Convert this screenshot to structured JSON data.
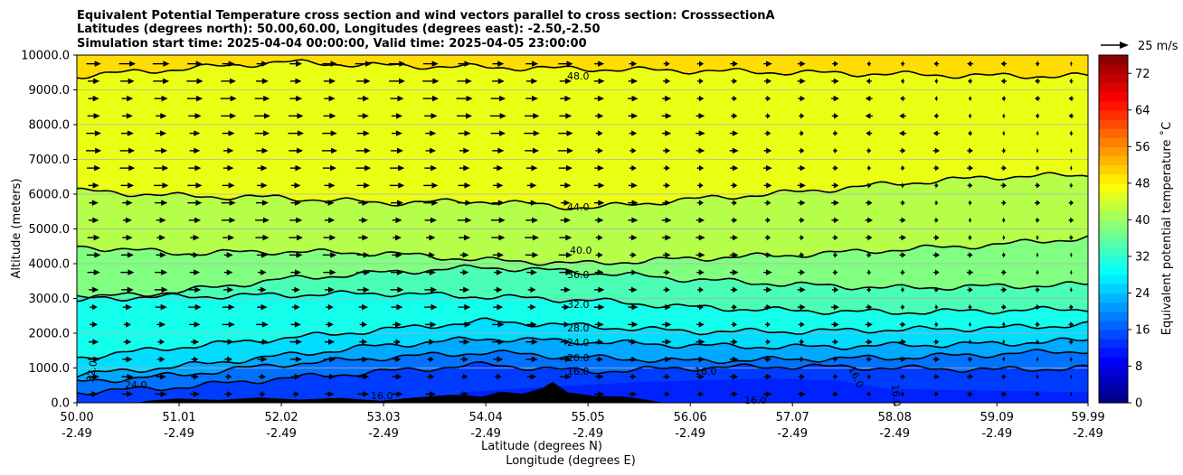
{
  "chart_data": {
    "type": "contourf",
    "title_lines": [
      "Equivalent Potential Temperature cross section and wind vectors parallel to cross section: CrosssectionA",
      "Latitudes (degrees north): 50.00,60.00, Longitudes (degrees east): -2.50,-2.50",
      "Simulation start time: 2025-04-04 00:00:00, Valid time: 2025-04-05 23:00:00"
    ],
    "ylabel": "Altitude (meters)",
    "xlabel_lat": "Latitude (degrees N)",
    "xlabel_lon": "Longitude (degrees E)",
    "ylim": [
      0,
      10000
    ],
    "y_ticks": [
      "0.0",
      "1000.0",
      "2000.0",
      "3000.0",
      "4000.0",
      "5000.0",
      "6000.0",
      "7000.0",
      "8000.0",
      "9000.0",
      "10000.0"
    ],
    "y_tick_values": [
      0,
      1000,
      2000,
      3000,
      4000,
      5000,
      6000,
      7000,
      8000,
      9000,
      10000
    ],
    "x_ticks_lat": [
      "50.00",
      "51.01",
      "52.02",
      "53.03",
      "54.04",
      "55.05",
      "56.06",
      "57.07",
      "58.08",
      "59.09",
      "59.99"
    ],
    "x_ticks_lon": [
      "-2.49",
      "-2.49",
      "-2.49",
      "-2.49",
      "-2.49",
      "-2.49",
      "-2.49",
      "-2.49",
      "-2.49",
      "-2.49",
      "-2.49"
    ],
    "x_tick_values": [
      50.0,
      51.01,
      52.02,
      53.03,
      54.04,
      55.05,
      56.06,
      57.07,
      58.08,
      59.09,
      59.99
    ],
    "xlim": [
      50.0,
      59.99
    ],
    "grid": "horizontal",
    "quiver_key_label": "25 m/s",
    "colorbar": {
      "label": "Equivalent potential temperature ˚C",
      "ticks": [
        "0",
        "8",
        "16",
        "24",
        "32",
        "40",
        "48",
        "56",
        "64",
        "72"
      ],
      "tick_values": [
        0,
        8,
        16,
        24,
        32,
        40,
        48,
        56,
        64,
        72
      ],
      "range": [
        0,
        76
      ]
    },
    "contours": [
      {
        "level": 48,
        "label": "48.0",
        "heights": [
          9400,
          9600,
          9800,
          9700,
          9650,
          9600,
          9550,
          9500,
          9450,
          9400,
          9400
        ]
      },
      {
        "level": 44,
        "label": "44.0",
        "heights": [
          6100,
          5950,
          5900,
          5750,
          5800,
          5600,
          5850,
          6050,
          6300,
          6500,
          6550
        ]
      },
      {
        "level": 40,
        "label": "40.0",
        "heights": [
          4500,
          4300,
          4350,
          4300,
          4100,
          4000,
          4150,
          4250,
          4400,
          4550,
          4750
        ]
      },
      {
        "level": 36,
        "label": "36.0",
        "heights": [
          3000,
          3200,
          3550,
          3750,
          3900,
          3750,
          3550,
          3400,
          3300,
          3350,
          3400
        ]
      },
      {
        "level": 32,
        "label": "32.0",
        "heights": [
          3000,
          3050,
          3100,
          3150,
          3050,
          2950,
          2750,
          2650,
          2600,
          2650,
          2700
        ]
      },
      {
        "level": 28,
        "label": "28.0",
        "heights": [
          1300,
          1600,
          1850,
          2100,
          2350,
          2200,
          2050,
          2050,
          2100,
          2150,
          2250
        ]
      },
      {
        "level": 24,
        "label": "24.0",
        "heights": [
          800,
          1050,
          1350,
          1650,
          1850,
          1750,
          1650,
          1600,
          1650,
          1700,
          1800
        ]
      },
      {
        "level": 20,
        "label": "20.0",
        "heights": [
          600,
          800,
          1100,
          1300,
          1450,
          1300,
          1200,
          1250,
          1300,
          1400,
          1500
        ]
      },
      {
        "level": 16,
        "label": "16.0",
        "heights": [
          300,
          450,
          700,
          900,
          1100,
          900,
          1000,
          1050,
          1000,
          950,
          1000
        ]
      }
    ],
    "extra_contour_labels": [
      "32.0",
      "24.0",
      "16.0",
      "16.0",
      "16.0",
      "16.0",
      "16.0"
    ],
    "wind": {
      "levels_m": [
        250,
        750,
        1250,
        1750,
        2250,
        2750,
        3250,
        3750,
        4250,
        4750,
        5250,
        5750,
        6250,
        6750,
        7250,
        7750,
        8250,
        8750,
        9250,
        9750
      ],
      "columns": 30,
      "direction": "toward higher latitude (left panel), weakening southward flow (right panel)"
    },
    "terrain": "orography peaks near 53.5–55.5 N up to ~600 m"
  }
}
